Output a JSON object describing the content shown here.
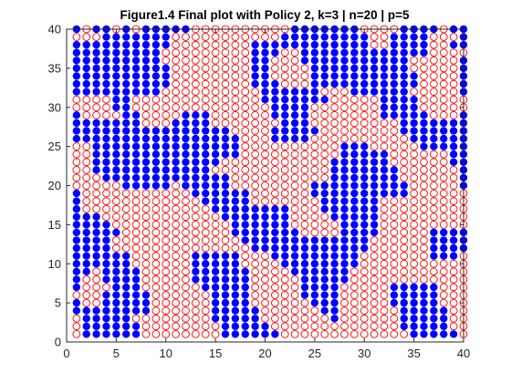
{
  "window": {
    "background": "#ffffff"
  },
  "chart_data": {
    "type": "scatter",
    "title": "Figure1.4 Final plot with Policy 2, k=3 | n=20 | p=5",
    "xlabel": "",
    "ylabel": "",
    "xlim": [
      0,
      40
    ],
    "ylim": [
      0,
      40
    ],
    "xticks": [
      0,
      5,
      10,
      15,
      20,
      25,
      30,
      35,
      40
    ],
    "yticks": [
      0,
      5,
      10,
      15,
      20,
      25,
      30,
      35,
      40
    ],
    "xtick_labels": [
      "0",
      "5",
      "10",
      "15",
      "20",
      "25",
      "30",
      "35",
      "40"
    ],
    "ytick_labels": [
      "0",
      "5",
      "10",
      "15",
      "20",
      "25",
      "30",
      "35",
      "40"
    ],
    "grid": false,
    "legend": "none",
    "grid_size": 40,
    "series": [
      {
        "marker": "filled-circle",
        "color": "#0000ff",
        "note": "cells where grid row character is B"
      },
      {
        "marker": "open-circle",
        "color": "#ff0000",
        "note": "cells where grid row character is R"
      }
    ],
    "grid_rows_top_to_bottom": [
      "BRBBRBRBBBBBRRRRRRRRRRBBBBBBBRRRRBBBBRBB",
      "RRRBBBBBBBRRRRRRRRRRRBBBBBBBBBRRBBBBRRRB",
      "BBBBBBBBBBRRRRRRRRBBBBBBBBBBBBRRBBBBRRBB",
      "BBBBBBBBBRRRRRRRRRBBBRRBBBBBBBBBBBBBRRRR",
      "BBBBBBBBBRRRRRRRRRBBRRRBBBBBBBBBBBRRRRRB",
      "BBBBBBBBBBRRRRRRRRBBRRRRBBBBBBBBBBRRRRRB",
      "BBBBBBBBBBRRRRRRRRBBRRRRBBBBBBBBBBBRRRRB",
      "BBBBBBBBBBRRRRRRRRBBBRRRBBBBBBBBBBBRRRRB",
      "BBBBBBBBBRRRRRRRRRRBBBBBBRRRBBBBBBRRRRRB",
      "RRRRBBRRRRRRRRRRRRRBBBBBBBRRRRRBBBBRRRRR",
      "RRRRBBRRRRRRRRRRRRRRBBBBRRRRRRRBBBBRRRRR",
      "BRRRRBBRRRRBBBRRRRRRBBBBRRRRRRRBBBBBRRRB",
      "BBBBBBBRRRBBBBRRRRRRRBBBRRRRRRRRRBBBBBBB",
      "BBBBBBBBBBBBBBBBRRRRBBBBBRRRRRRRRBBBBBBB",
      "BBBBBBBBBBBBBBBBBRRRBBBBRRRRRRRRRRBBBBBB",
      "RRBBBBBBBBBBBBBBBRRRRRRRRRRBBBRRRRRBBBBB",
      "RRBBBBBBBBBBBBBBBRRRRRRRRRRBBBBBRRRRRRBB",
      "RRBBBBBBBBBBBBBRRRRRRRRRRRBBBBBBRRRRRRBB",
      "RRBBBBBBBBBBBBRRRRRRRRRRRRBBBBBBBRRRRRRB",
      "RRRBBBBBBBBBBBBBRRRRRRRRRRBBBBBBBRRRRRRB",
      "RRRRRBBBBBRBBBBBRRRRRRRRBBBBBBBBBBRRRRRB",
      "BRRRRRRRRRRRBBBBBBRRRRRRBBBBBBBBBBRRRRRR",
      "BRRRRRRRRRRRRBBBBBRRRRRRRBBBBBBRRRRRRRRR",
      "BRRRRRRRRRRRRRBBBBBBBBRRRBBBBBBRRRRRRRRR",
      "BBBRRRRRRRRRRRRBBBBBBBRRRRBBBBBRRRRRRRRR",
      "BBBBRRRRRRRRRRRRBBBBBBRRRRRBBBBRRRRRRRRR",
      "BBBBBRRRRRRRRRRRBBBBBBBRRRRBBBBRRRRRBBBB",
      "BBBBRRRRRRRRRRRRRBBBBBBBBBBBBBRRRRRRBBBB",
      "BBBBRRRRRRRRRRRRRRBBBBBBBBBBBBRRRRRRBBBB",
      "BBBBBBRRRRRRBBBBBRRRBBBBBBBBBRRRRRRRBBBR",
      "BBBBBBRRRRRRBBBBBRRRRBBBBBBBBRRRRRRRRRRR",
      "BBRBBBBRRRRRBBBBBBRRRRBBBBBBRRRRRRRRRRRR",
      "BRRBBBBRRRRRBBBBBBRRRRRBBBBBRRRRRRRRRRRR",
      "BRRRBBBRRRRRRBBBBBRRRRRBBBBRRRRRBBBBBRRR",
      "RRRBBBBBRRRRRRBBBBRRRRRBBBBRRRRRBBBBBRRR",
      "BRRBBBBBRRRRRRBBBBRRRRRRBBBRRRRRBBBBBRRR",
      "BBBBBBBBRRRRRRBBBBBRRRRRRBBRRRRRRBBBBBRR",
      "RBBBBBRRRRRRRRBBBBBRRRRRRRBRRRRRRBBBBBRR",
      "RBBBBBBRRRRRRRRBBBBBRRRRRRRRRRRRRBBBBBRR",
      "RBBBBBBRRRRRRRRBBBBBBRRRRRRRRRRRRRBBBBBR"
    ]
  }
}
